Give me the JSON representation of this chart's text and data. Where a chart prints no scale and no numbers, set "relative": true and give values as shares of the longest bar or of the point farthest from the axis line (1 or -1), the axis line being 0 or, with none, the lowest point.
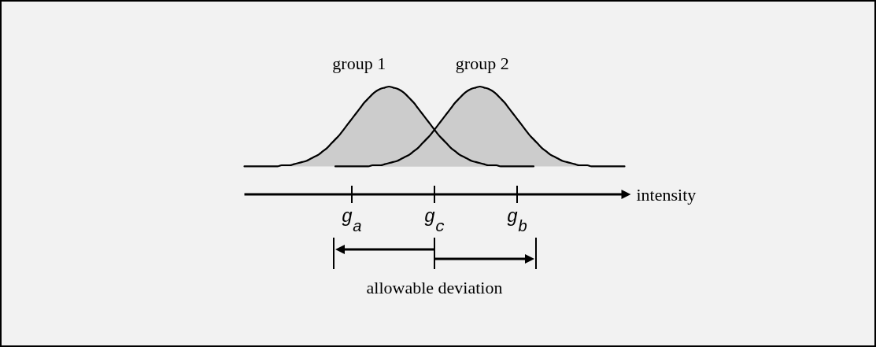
{
  "chart_data": {
    "type": "area",
    "relative": true,
    "xlabel": "intensity",
    "categories": [
      null,
      null,
      null,
      null,
      null,
      null,
      null,
      null,
      null,
      null,
      null,
      null,
      null,
      null,
      null,
      null,
      null,
      null,
      null,
      null,
      null,
      null,
      null,
      null,
      null,
      null,
      "g$_{a}$",
      null,
      null,
      null,
      null,
      null,
      null,
      null,
      null,
      null,
      null,
      null,
      null,
      null,
      null,
      null,
      null,
      null,
      null,
      null,
      "g$_{c}$",
      null,
      null,
      null,
      null,
      null,
      null,
      null,
      null,
      null,
      null,
      null,
      null,
      null,
      null,
      null,
      null,
      null,
      null,
      null,
      "g$_{b}$",
      null,
      null,
      null,
      null,
      null,
      null,
      null,
      null,
      null,
      null,
      null,
      null,
      null,
      null,
      null,
      null,
      null,
      null,
      null,
      null,
      null,
      null,
      null,
      null,
      null,
      null
    ],
    "annotations": [
      "allowable deviation"
    ],
    "series": [
      {
        "name": "group 1",
        "color": "#cccccc",
        "values": [
          0.26,
          0.26,
          0.26,
          0.26,
          0.26,
          0.26,
          0.26,
          0.26,
          0.26,
          0.27,
          0.27,
          0.27,
          0.28,
          0.29,
          0.3,
          0.31,
          0.33,
          0.35,
          0.37,
          0.4,
          0.43,
          0.47,
          0.51,
          0.55,
          0.6,
          0.65,
          0.7,
          0.75,
          0.8,
          0.85,
          0.89,
          0.93,
          0.96,
          0.98,
          0.99,
          1,
          0.99,
          0.98,
          0.96,
          0.93,
          0.89,
          0.85,
          0.8,
          0.75,
          0.7,
          0.65,
          0.6,
          0.55,
          0.51,
          0.47,
          0.43,
          0.4,
          0.37,
          0.35,
          0.33,
          0.31,
          0.3,
          0.29,
          0.28,
          0.27,
          0.27,
          0.27,
          0.26,
          0.26,
          0.26,
          0.26,
          0.26,
          0.26,
          0.26,
          0.26,
          0.26,
          null,
          null,
          null,
          null,
          null,
          null,
          null,
          null,
          null,
          null,
          null,
          null,
          null,
          null,
          null,
          null,
          null,
          null,
          null,
          null,
          null,
          null
        ]
      },
      {
        "name": "group 2",
        "color": "#cccccc",
        "values": [
          null,
          null,
          null,
          null,
          null,
          null,
          null,
          null,
          null,
          null,
          null,
          null,
          null,
          null,
          null,
          null,
          null,
          null,
          null,
          null,
          null,
          null,
          0.26,
          0.26,
          0.26,
          0.26,
          0.26,
          0.26,
          0.26,
          0.26,
          0.26,
          0.27,
          0.27,
          0.27,
          0.28,
          0.29,
          0.3,
          0.31,
          0.33,
          0.35,
          0.37,
          0.4,
          0.43,
          0.47,
          0.51,
          0.55,
          0.6,
          0.65,
          0.7,
          0.75,
          0.8,
          0.85,
          0.89,
          0.93,
          0.96,
          0.98,
          0.99,
          1,
          0.99,
          0.98,
          0.96,
          0.93,
          0.89,
          0.85,
          0.8,
          0.75,
          0.7,
          0.65,
          0.6,
          0.55,
          0.51,
          0.47,
          0.43,
          0.4,
          0.37,
          0.35,
          0.33,
          0.31,
          0.3,
          0.29,
          0.28,
          0.27,
          0.27,
          0.27,
          0.26,
          0.26,
          0.26,
          0.26,
          0.26,
          0.26,
          0.26,
          0.26,
          0.26
        ]
      }
    ]
  }
}
